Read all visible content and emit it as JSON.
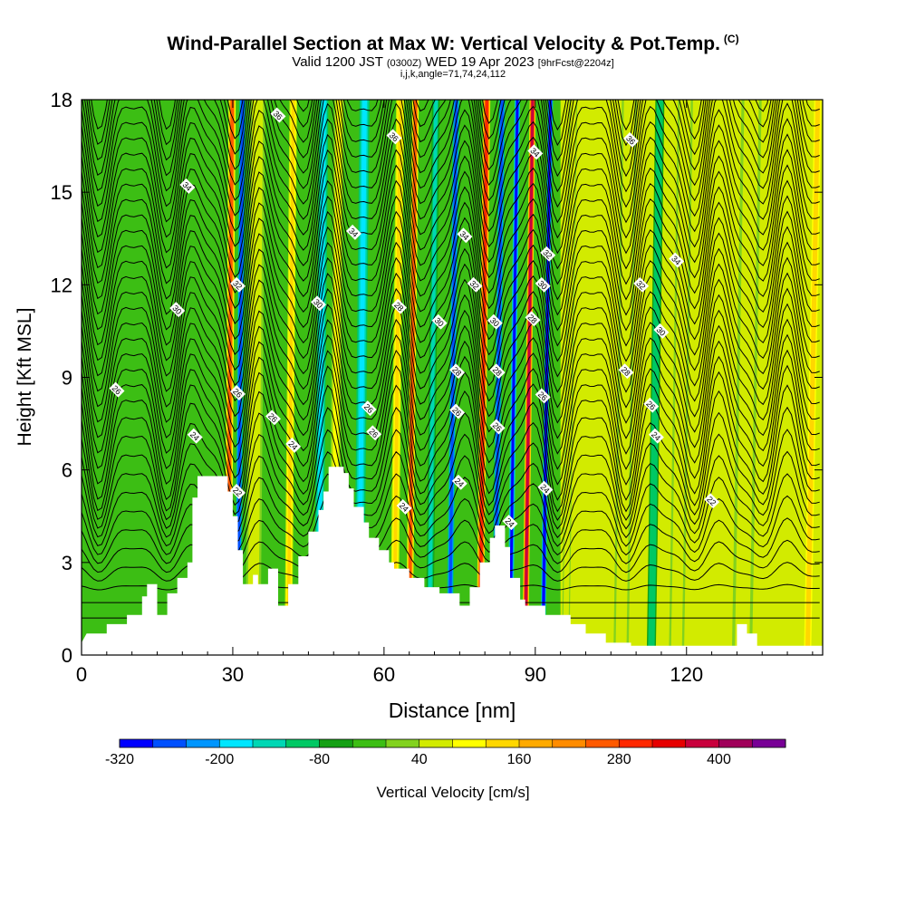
{
  "title": "Wind-Parallel Section at Max W: Vertical Velocity & Pot.Temp.",
  "title_tag": "(C)",
  "subtitle": {
    "valid": "Valid 1200 JST",
    "utc": "(0300Z)",
    "date": "WED 19 Apr 2023",
    "fcst": "[9hrFcst@2204z]"
  },
  "subtitle2": "i,j,k,angle=71,74,24,112",
  "chart_data": {
    "type": "heatmap",
    "xlabel": "Distance [nm]",
    "ylabel": "Height [Kft MSL]",
    "xlim": [
      0,
      147
    ],
    "ylim": [
      0,
      18
    ],
    "x_ticks": [
      "0",
      "30",
      "60",
      "90",
      "120"
    ],
    "x_tick_values": [
      0,
      30,
      60,
      90,
      120
    ],
    "y_ticks": [
      "0",
      "3",
      "6",
      "9",
      "12",
      "15",
      "18"
    ],
    "y_tick_values": [
      0,
      3,
      6,
      9,
      12,
      15,
      18
    ],
    "colorbar": {
      "label": "Vertical Velocity [cm/s]",
      "min": -320,
      "max": 480,
      "step": 40,
      "tick_labels": [
        "-320",
        "-200",
        "-80",
        "40",
        "160",
        "280",
        "400"
      ],
      "tick_values": [
        -320,
        -200,
        -80,
        40,
        160,
        280,
        400
      ],
      "colors": [
        "#0000ff",
        "#0050ff",
        "#0096ff",
        "#00e6ff",
        "#00d7b4",
        "#00c864",
        "#14a014",
        "#3cbe14",
        "#82d21e",
        "#d2eb00",
        "#ffff00",
        "#ffd700",
        "#ffaa00",
        "#ff8c00",
        "#ff5a00",
        "#ff2800",
        "#e60000",
        "#c8003c",
        "#a0005a",
        "#780096"
      ]
    },
    "vertical_velocity_bands": [
      {
        "x": 29,
        "w": 1.4,
        "v": 260
      },
      {
        "x": 31,
        "w": 1.3,
        "v": -260
      },
      {
        "x": 34,
        "w": 3,
        "v": 70
      },
      {
        "x": 41,
        "w": 1.5,
        "v": 140
      },
      {
        "x": 47,
        "w": 1.8,
        "v": -180
      },
      {
        "x": 50,
        "w": 2,
        "v": 80
      },
      {
        "x": 55,
        "w": 2,
        "v": -200
      },
      {
        "x": 62,
        "w": 1.6,
        "v": 120
      },
      {
        "x": 65,
        "w": 1.3,
        "v": 260
      },
      {
        "x": 69,
        "w": 1.5,
        "v": -140
      },
      {
        "x": 73,
        "w": 1.3,
        "v": -260
      },
      {
        "x": 79,
        "w": 1.4,
        "v": 300
      },
      {
        "x": 82,
        "w": 1.3,
        "v": -260
      },
      {
        "x": 85,
        "w": 1.1,
        "v": -300
      },
      {
        "x": 88,
        "w": 1.2,
        "v": 380
      },
      {
        "x": 91.5,
        "w": 1,
        "v": -320
      },
      {
        "x": 96,
        "w": 1.5,
        "v": 60
      },
      {
        "x": 107,
        "w": 3,
        "v": 70
      },
      {
        "x": 113,
        "w": 1.8,
        "v": -120
      },
      {
        "x": 118,
        "w": 3,
        "v": 70
      },
      {
        "x": 131,
        "w": 4,
        "v": 60
      },
      {
        "x": 144,
        "w": 2,
        "v": 120
      }
    ],
    "potential_temperature_levels": [
      22,
      24,
      26,
      28,
      30,
      32,
      34,
      36
    ],
    "contour_labels": [
      {
        "x": 39,
        "y": 17.5,
        "t": "36"
      },
      {
        "x": 62,
        "y": 16.8,
        "t": "36"
      },
      {
        "x": 109,
        "y": 16.7,
        "t": "36"
      },
      {
        "x": 21,
        "y": 15.2,
        "t": "34"
      },
      {
        "x": 54,
        "y": 13.7,
        "t": "34"
      },
      {
        "x": 76,
        "y": 13.6,
        "t": "34"
      },
      {
        "x": 90,
        "y": 16.3,
        "t": "34"
      },
      {
        "x": 118,
        "y": 12.8,
        "t": "34"
      },
      {
        "x": 31,
        "y": 12.0,
        "t": "32"
      },
      {
        "x": 78,
        "y": 12.0,
        "t": "32"
      },
      {
        "x": 92.5,
        "y": 13.0,
        "t": "32"
      },
      {
        "x": 111,
        "y": 12.0,
        "t": "32"
      },
      {
        "x": 19,
        "y": 11.2,
        "t": "30"
      },
      {
        "x": 47,
        "y": 11.4,
        "t": "30"
      },
      {
        "x": 71,
        "y": 10.8,
        "t": "30"
      },
      {
        "x": 82,
        "y": 10.8,
        "t": "30"
      },
      {
        "x": 91.5,
        "y": 12.0,
        "t": "30"
      },
      {
        "x": 115,
        "y": 10.5,
        "t": "30"
      },
      {
        "x": 63,
        "y": 11.3,
        "t": "28"
      },
      {
        "x": 74.5,
        "y": 9.2,
        "t": "28"
      },
      {
        "x": 82.5,
        "y": 9.2,
        "t": "28"
      },
      {
        "x": 89.5,
        "y": 10.9,
        "t": "28"
      },
      {
        "x": 108,
        "y": 9.2,
        "t": "28"
      },
      {
        "x": 7,
        "y": 8.6,
        "t": "26"
      },
      {
        "x": 31,
        "y": 8.5,
        "t": "26"
      },
      {
        "x": 38,
        "y": 7.7,
        "t": "26"
      },
      {
        "x": 57,
        "y": 8.0,
        "t": "26"
      },
      {
        "x": 58,
        "y": 7.2,
        "t": "26"
      },
      {
        "x": 74.5,
        "y": 7.9,
        "t": "26"
      },
      {
        "x": 82.5,
        "y": 7.4,
        "t": "26"
      },
      {
        "x": 91.5,
        "y": 8.4,
        "t": "26"
      },
      {
        "x": 113,
        "y": 8.1,
        "t": "26"
      },
      {
        "x": 22.5,
        "y": 7.1,
        "t": "24"
      },
      {
        "x": 42,
        "y": 6.8,
        "t": "24"
      },
      {
        "x": 64,
        "y": 4.8,
        "t": "24"
      },
      {
        "x": 75,
        "y": 5.6,
        "t": "24"
      },
      {
        "x": 85,
        "y": 4.3,
        "t": "24"
      },
      {
        "x": 92,
        "y": 5.4,
        "t": "24"
      },
      {
        "x": 114,
        "y": 7.1,
        "t": "24"
      },
      {
        "x": 31,
        "y": 5.3,
        "t": "22"
      },
      {
        "x": 125,
        "y": 5.0,
        "t": "22"
      }
    ]
  }
}
